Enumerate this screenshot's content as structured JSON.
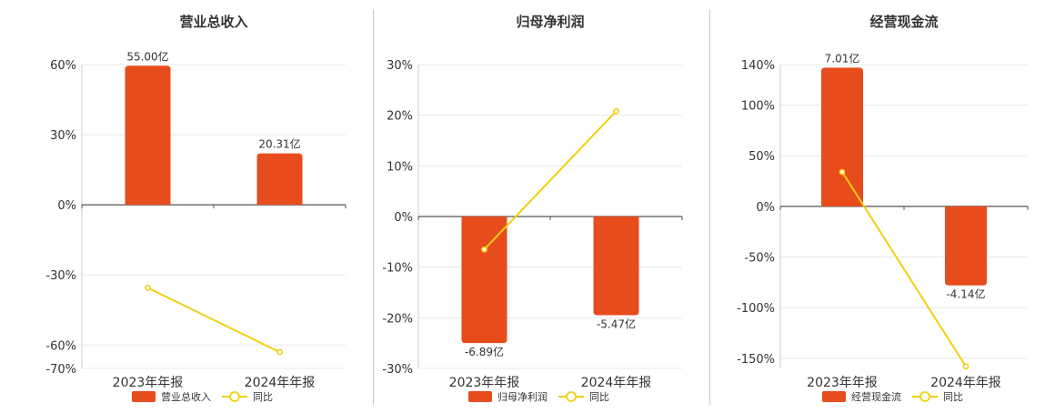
{
  "chart_data": [
    {
      "type": "bar",
      "title": "营业总收入",
      "categories": [
        "2023年年报",
        "2024年年报"
      ],
      "series": [
        {
          "name": "营业总收入",
          "kind": "bar",
          "values": [
            59.5,
            22.0
          ],
          "labels": [
            "55.00亿",
            "20.31亿"
          ],
          "color": "#e84c1c"
        },
        {
          "name": "同比",
          "kind": "line",
          "values": [
            -35.5,
            -63.0
          ],
          "color": "#f2cf0f"
        }
      ],
      "yticks": [
        "60%",
        "30%",
        "0%",
        "-30%",
        "-60%",
        "-70%"
      ],
      "ytick_values": [
        60,
        30,
        0,
        -30,
        -60,
        -70
      ],
      "ylim": [
        -70,
        60
      ],
      "legend": "bottom"
    },
    {
      "type": "bar",
      "title": "归母净利润",
      "categories": [
        "2023年年报",
        "2024年年报"
      ],
      "series": [
        {
          "name": "归母净利润",
          "kind": "bar",
          "values": [
            -25.0,
            -19.5
          ],
          "labels": [
            "-6.89亿",
            "-5.47亿"
          ],
          "color": "#e84c1c"
        },
        {
          "name": "同比",
          "kind": "line",
          "values": [
            -6.5,
            20.8
          ],
          "color": "#f2cf0f"
        }
      ],
      "yticks": [
        "30%",
        "20%",
        "10%",
        "0%",
        "-10%",
        "-20%",
        "-30%"
      ],
      "ytick_values": [
        30,
        20,
        10,
        0,
        -10,
        -20,
        -30
      ],
      "ylim": [
        -30,
        30
      ],
      "legend": "bottom"
    },
    {
      "type": "bar",
      "title": "经营现金流",
      "categories": [
        "2023年年报",
        "2024年年报"
      ],
      "series": [
        {
          "name": "经营现金流",
          "kind": "bar",
          "values": [
            137.0,
            -78.0
          ],
          "labels": [
            "7.01亿",
            "-4.14亿"
          ],
          "color": "#e84c1c"
        },
        {
          "name": "同比",
          "kind": "line",
          "values": [
            34.0,
            -158.0
          ],
          "color": "#f2cf0f"
        }
      ],
      "yticks": [
        "140%",
        "100%",
        "50%",
        "0%",
        "-50%",
        "-100%",
        "-150%"
      ],
      "ytick_values": [
        140,
        100,
        50,
        0,
        -50,
        -100,
        -150
      ],
      "ylim": [
        -160,
        140
      ],
      "legend": "bottom"
    }
  ]
}
